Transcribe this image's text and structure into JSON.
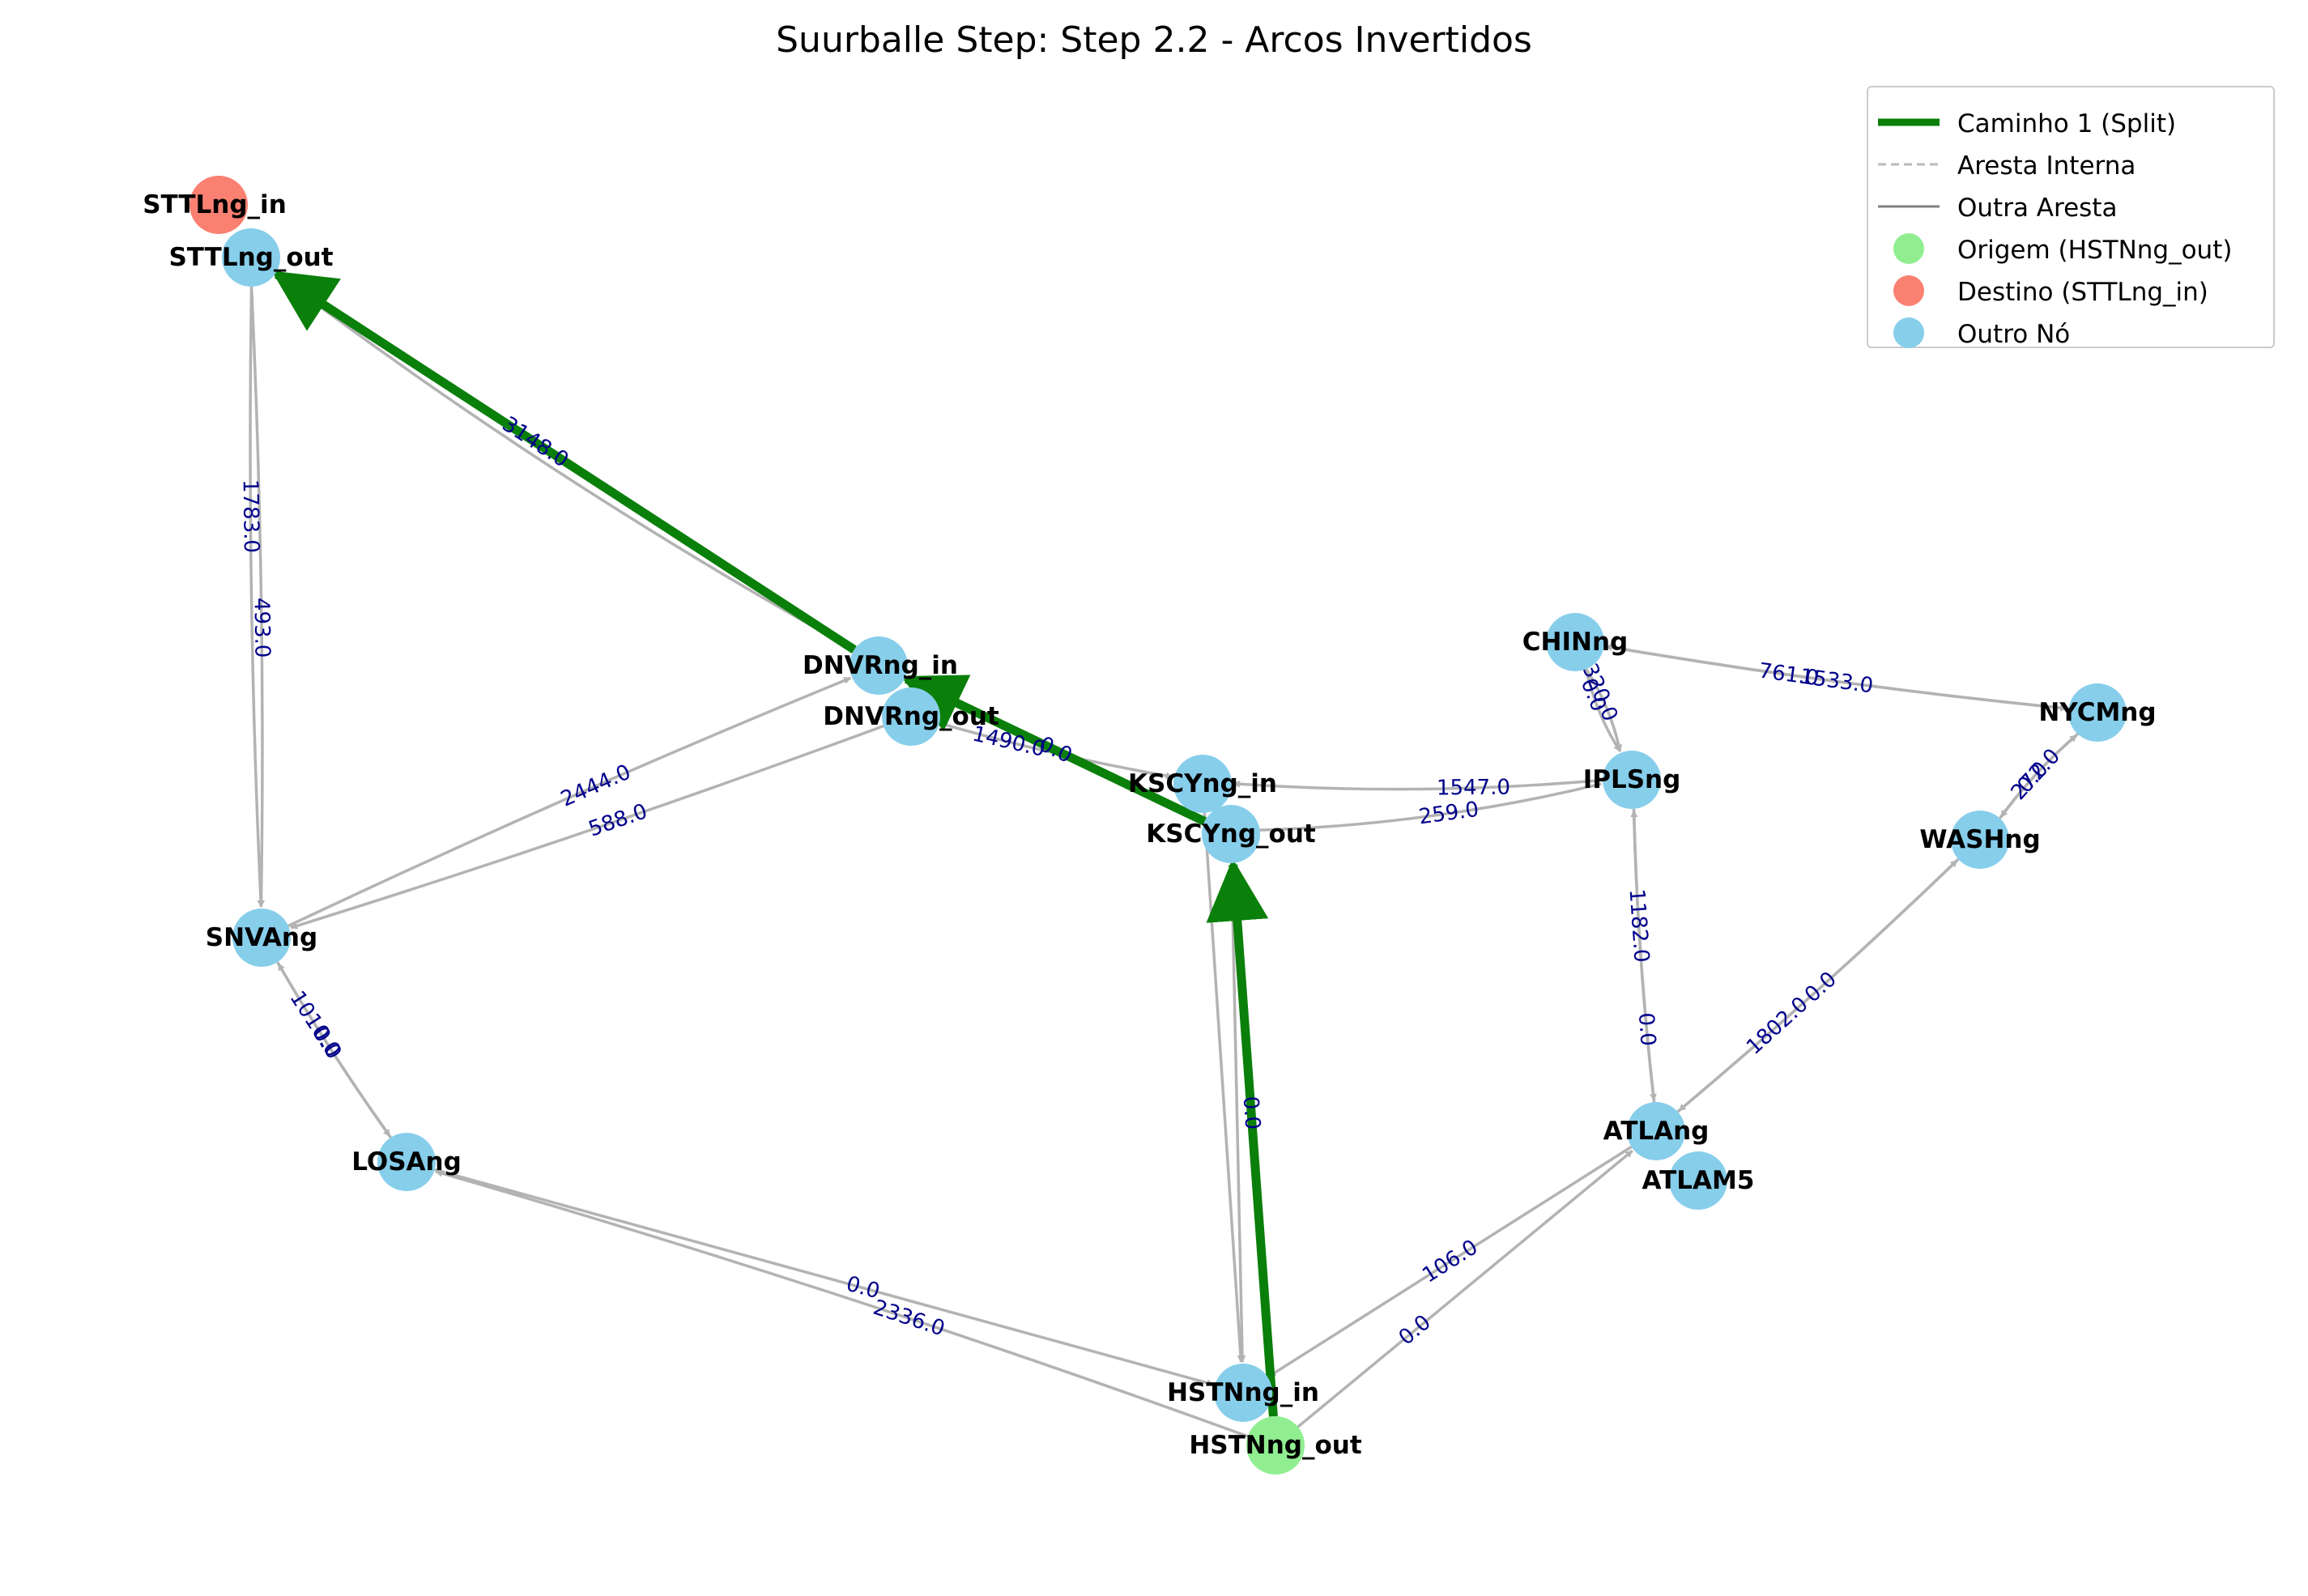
{
  "title": "Suurballe Step: Step 2.2 - Arcos Invertidos",
  "colors": {
    "path": "#0a7f0a",
    "edge": "#b3b3b3",
    "edge_label": "#00008b",
    "origin_node": "#90ee90",
    "dest_node": "#fa8072",
    "other_node": "#87ceeb"
  },
  "legend": [
    {
      "label": "Caminho 1 (Split)",
      "symbol": "thick-line",
      "color": "#0a7f0a"
    },
    {
      "label": "Aresta Interna",
      "symbol": "dashed-line",
      "color": "#bbbbbb"
    },
    {
      "label": "Outra Aresta",
      "symbol": "solid-line",
      "color": "#808080"
    },
    {
      "label": "Origem (HSTNng_out)",
      "symbol": "circle",
      "color": "#90ee90"
    },
    {
      "label": "Destino (STTLng_in)",
      "symbol": "circle",
      "color": "#fa8072"
    },
    {
      "label": "Outro Nó",
      "symbol": "circle",
      "color": "#87ceeb"
    }
  ],
  "nodes": [
    {
      "id": "STTLng_in",
      "label": "STTLng_in",
      "role": "destination"
    },
    {
      "id": "STTLng_out",
      "label": "STTLng_out",
      "role": "other"
    },
    {
      "id": "DNVRng_in",
      "label": "DNVRng_in",
      "role": "other"
    },
    {
      "id": "DNVRng_out",
      "label": "DNVRng_out",
      "role": "other"
    },
    {
      "id": "KSCYng_in",
      "label": "KSCYng_in",
      "role": "other"
    },
    {
      "id": "KSCYng_out",
      "label": "KSCYng_out",
      "role": "other"
    },
    {
      "id": "CHINng",
      "label": "CHINng",
      "role": "other"
    },
    {
      "id": "IPLSng",
      "label": "IPLSng",
      "role": "other"
    },
    {
      "id": "NYCMng",
      "label": "NYCMng",
      "role": "other"
    },
    {
      "id": "WASHng",
      "label": "WASHng",
      "role": "other"
    },
    {
      "id": "SNVAng",
      "label": "SNVAng",
      "role": "other"
    },
    {
      "id": "LOSAng",
      "label": "LOSAng",
      "role": "other"
    },
    {
      "id": "ATLAng",
      "label": "ATLAng",
      "role": "other"
    },
    {
      "id": "ATLAM5",
      "label": "ATLAM5",
      "role": "other"
    },
    {
      "id": "HSTNng_in",
      "label": "HSTNng_in",
      "role": "other"
    },
    {
      "id": "HSTNng_out",
      "label": "HSTNng_out",
      "role": "origin"
    }
  ],
  "edges": [
    {
      "from": "STTLng_out",
      "to": "DNVRng_in",
      "label": "3148.0",
      "type": "other"
    },
    {
      "from": "STTLng_out",
      "to": "DNVRng_in",
      "label": "",
      "type": "other"
    },
    {
      "from": "STTLng_out",
      "to": "SNVAng",
      "label": "1783.0",
      "type": "other"
    },
    {
      "from": "STTLng_out",
      "to": "SNVAng",
      "label": "493.0",
      "type": "other"
    },
    {
      "from": "DNVRng_out",
      "to": "SNVAng",
      "label": "588.0",
      "type": "other"
    },
    {
      "from": "SNVAng",
      "to": "DNVRng_in",
      "label": "2444.0",
      "type": "other"
    },
    {
      "from": "DNVRng_out",
      "to": "KSCYng_in",
      "label": "1490.0",
      "type": "other"
    },
    {
      "from": "IPLSng",
      "to": "KSCYng_in",
      "label": "1547.0",
      "type": "other"
    },
    {
      "from": "KSCYng_out",
      "to": "IPLSng",
      "label": "259.0",
      "type": "other"
    },
    {
      "from": "KSCYng_out",
      "to": "HSTNng_in",
      "label": "",
      "type": "other"
    },
    {
      "from": "KSCYng_in",
      "to": "HSTNng_in",
      "label": "",
      "type": "other"
    },
    {
      "from": "CHINng",
      "to": "IPLSng",
      "label": "0.0",
      "type": "other"
    },
    {
      "from": "CHINng",
      "to": "IPLSng",
      "label": "320.0",
      "type": "other"
    },
    {
      "from": "CHINng",
      "to": "NYCMng",
      "label": "761.0",
      "type": "other"
    },
    {
      "from": "NYCMng",
      "to": "CHINng",
      "label": "1533.0",
      "type": "other"
    },
    {
      "from": "NYCMng",
      "to": "WASHng",
      "label": "0.0",
      "type": "other"
    },
    {
      "from": "WASHng",
      "to": "NYCMng",
      "label": "272.0",
      "type": "other"
    },
    {
      "from": "IPLSng",
      "to": "ATLAng",
      "label": "1182.0",
      "type": "other"
    },
    {
      "from": "ATLAng",
      "to": "IPLSng",
      "label": "0.0",
      "type": "other"
    },
    {
      "from": "ATLAng",
      "to": "WASHng",
      "label": "1802.0",
      "type": "other"
    },
    {
      "from": "WASHng",
      "to": "ATLAng",
      "label": "0.0",
      "type": "other"
    },
    {
      "from": "SNVAng",
      "to": "LOSAng",
      "label": "1010.0",
      "type": "other"
    },
    {
      "from": "LOSAng",
      "to": "SNVAng",
      "label": "0.0",
      "type": "other"
    },
    {
      "from": "HSTNng_out",
      "to": "LOSAng",
      "label": "2336.0",
      "type": "other"
    },
    {
      "from": "LOSAng",
      "to": "HSTNng_in",
      "label": "0.0",
      "type": "other"
    },
    {
      "from": "ATLAng",
      "to": "HSTNng_in",
      "label": "106.0",
      "type": "other"
    },
    {
      "from": "HSTNng_out",
      "to": "ATLAng",
      "label": "0.0",
      "type": "other"
    },
    {
      "from": "HSTNng_out",
      "to": "KSCYng_out",
      "label": "0.0",
      "type": "path"
    },
    {
      "from": "KSCYng_out",
      "to": "DNVRng_in",
      "label": "0.0",
      "type": "path"
    },
    {
      "from": "DNVRng_in",
      "to": "STTLng_out",
      "label": "",
      "type": "path"
    }
  ]
}
